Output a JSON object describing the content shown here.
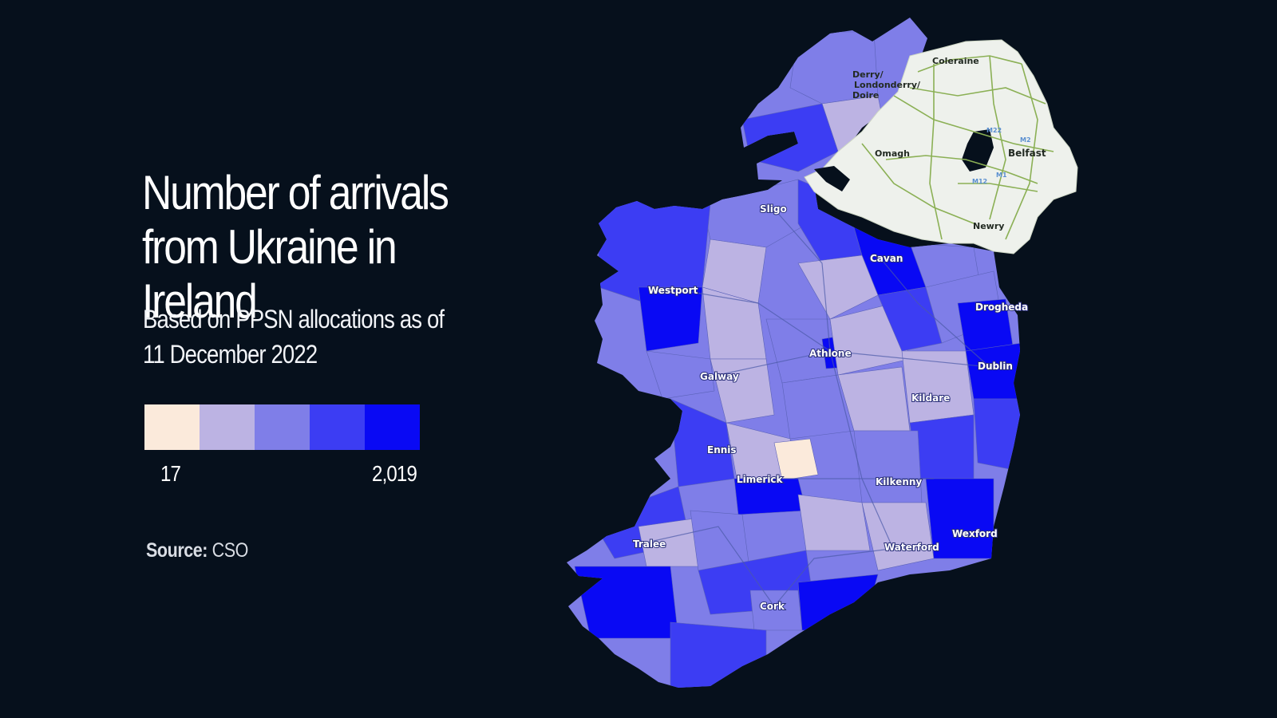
{
  "title": "Number of arrivals from Ukraine in Ireland",
  "subtitle": "Based on PPSN allocations as of 11 December 2022",
  "legend": {
    "colors": [
      "#fbeadb",
      "#bcb3e3",
      "#7f7ee8",
      "#3c3df3",
      "#0909f4"
    ],
    "min_label": "17",
    "max_label": "2,019"
  },
  "source": {
    "label": "Source:",
    "value": "CSO"
  },
  "map": {
    "roi_cities": [
      {
        "name": "Sligo",
        "id": "sligo"
      },
      {
        "name": "Cavan",
        "id": "cavan"
      },
      {
        "name": "Westport",
        "id": "westport"
      },
      {
        "name": "Drogheda",
        "id": "drogheda"
      },
      {
        "name": "Athlone",
        "id": "athlone"
      },
      {
        "name": "Galway",
        "id": "galway"
      },
      {
        "name": "Dublin",
        "id": "dublin"
      },
      {
        "name": "Kildare",
        "id": "kildare"
      },
      {
        "name": "Ennis",
        "id": "ennis"
      },
      {
        "name": "Limerick",
        "id": "limerick"
      },
      {
        "name": "Kilkenny",
        "id": "kilkenny"
      },
      {
        "name": "Wexford",
        "id": "wexford"
      },
      {
        "name": "Tralee",
        "id": "tralee"
      },
      {
        "name": "Waterford",
        "id": "waterford"
      },
      {
        "name": "Cork",
        "id": "cork"
      }
    ],
    "ni_cities": [
      {
        "name": "Coleraine",
        "id": "coleraine"
      },
      {
        "name": "Derry/",
        "id": "derry-1"
      },
      {
        "name": "Londonderry/",
        "id": "derry-2"
      },
      {
        "name": "Doire",
        "id": "derry-3"
      },
      {
        "name": "Omagh",
        "id": "omagh"
      },
      {
        "name": "Belfast",
        "id": "belfast"
      },
      {
        "name": "Newry",
        "id": "newry"
      }
    ],
    "road_labels": [
      "M22",
      "M2",
      "M1",
      "M12"
    ]
  }
}
